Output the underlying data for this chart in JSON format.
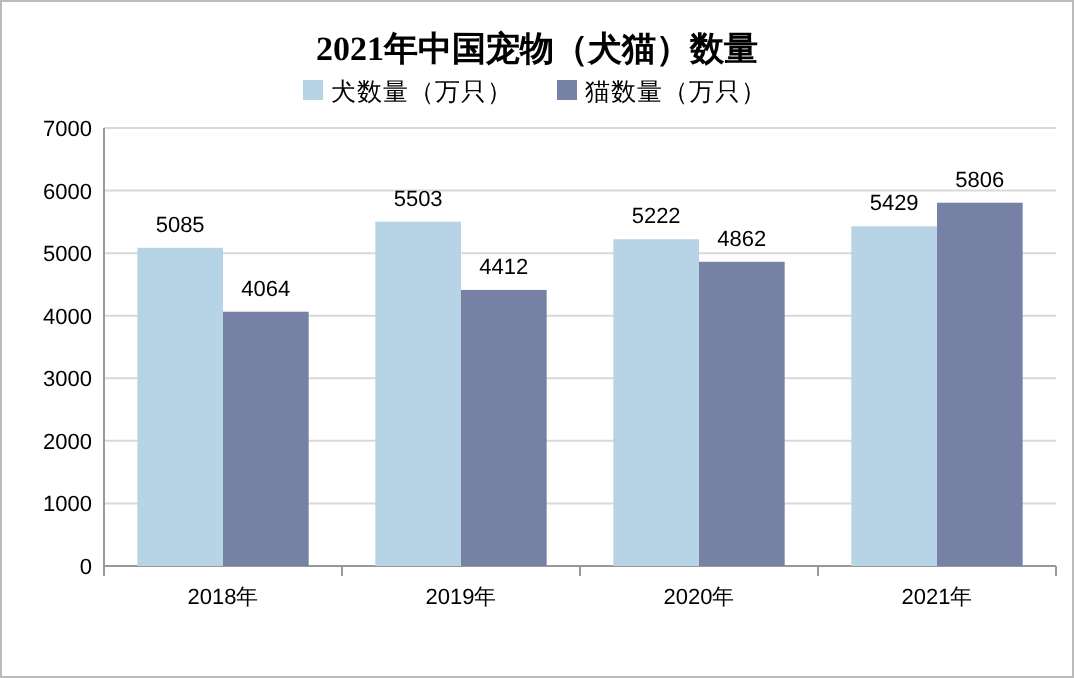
{
  "chart_data": {
    "type": "bar",
    "title": "2021年中国宠物（犬猫）数量",
    "categories": [
      "2018年",
      "2019年",
      "2020年",
      "2021年"
    ],
    "series": [
      {
        "name": "犬数量（万只）",
        "color": "#b7d3e6",
        "values": [
          5085,
          5503,
          5222,
          5429
        ]
      },
      {
        "name": "猫数量（万只）",
        "color": "#7781a6",
        "values": [
          4064,
          4412,
          4862,
          5806
        ]
      }
    ],
    "ylim": [
      0,
      7000
    ],
    "yticks": [
      0,
      1000,
      2000,
      3000,
      4000,
      5000,
      6000,
      7000
    ],
    "grid": "y",
    "legend": "top",
    "data_labels": true
  }
}
